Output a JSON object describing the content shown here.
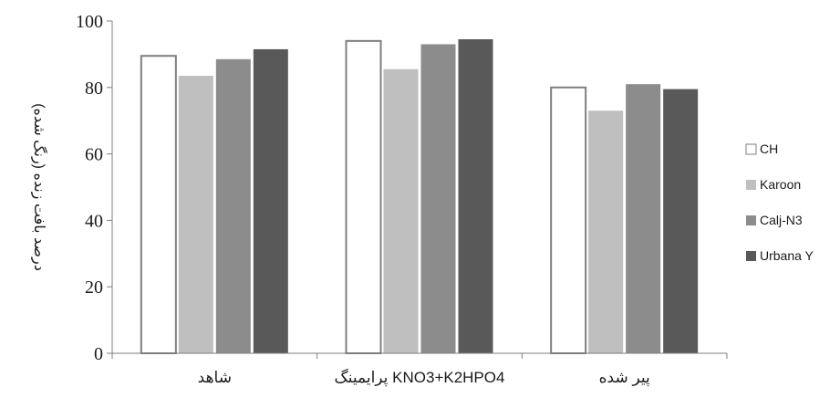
{
  "chart_data": {
    "type": "bar",
    "title": "",
    "xlabel": "",
    "ylabel": "درصد بافت زنده (رنگ شده)",
    "ylim": [
      0,
      100
    ],
    "yticks": [
      0,
      20,
      40,
      60,
      80,
      100
    ],
    "grid": false,
    "legend_position": "right",
    "categories": [
      "شاهد",
      "پرایمینگ KNO3+K2HPO4",
      "پیر شده"
    ],
    "series": [
      {
        "name": "CH",
        "color": "#ffffff",
        "stroke": "#7f7f7f",
        "values": [
          89.5,
          94,
          80
        ]
      },
      {
        "name": "Karoon",
        "color": "#bfbfbf",
        "stroke": "none",
        "values": [
          83.5,
          85.5,
          73
        ]
      },
      {
        "name": "Calj-N3",
        "color": "#8c8c8c",
        "stroke": "none",
        "values": [
          88.5,
          93,
          81
        ]
      },
      {
        "name": "Urbana Y",
        "color": "#595959",
        "stroke": "none",
        "values": [
          91.5,
          94.5,
          79.5
        ]
      }
    ]
  }
}
